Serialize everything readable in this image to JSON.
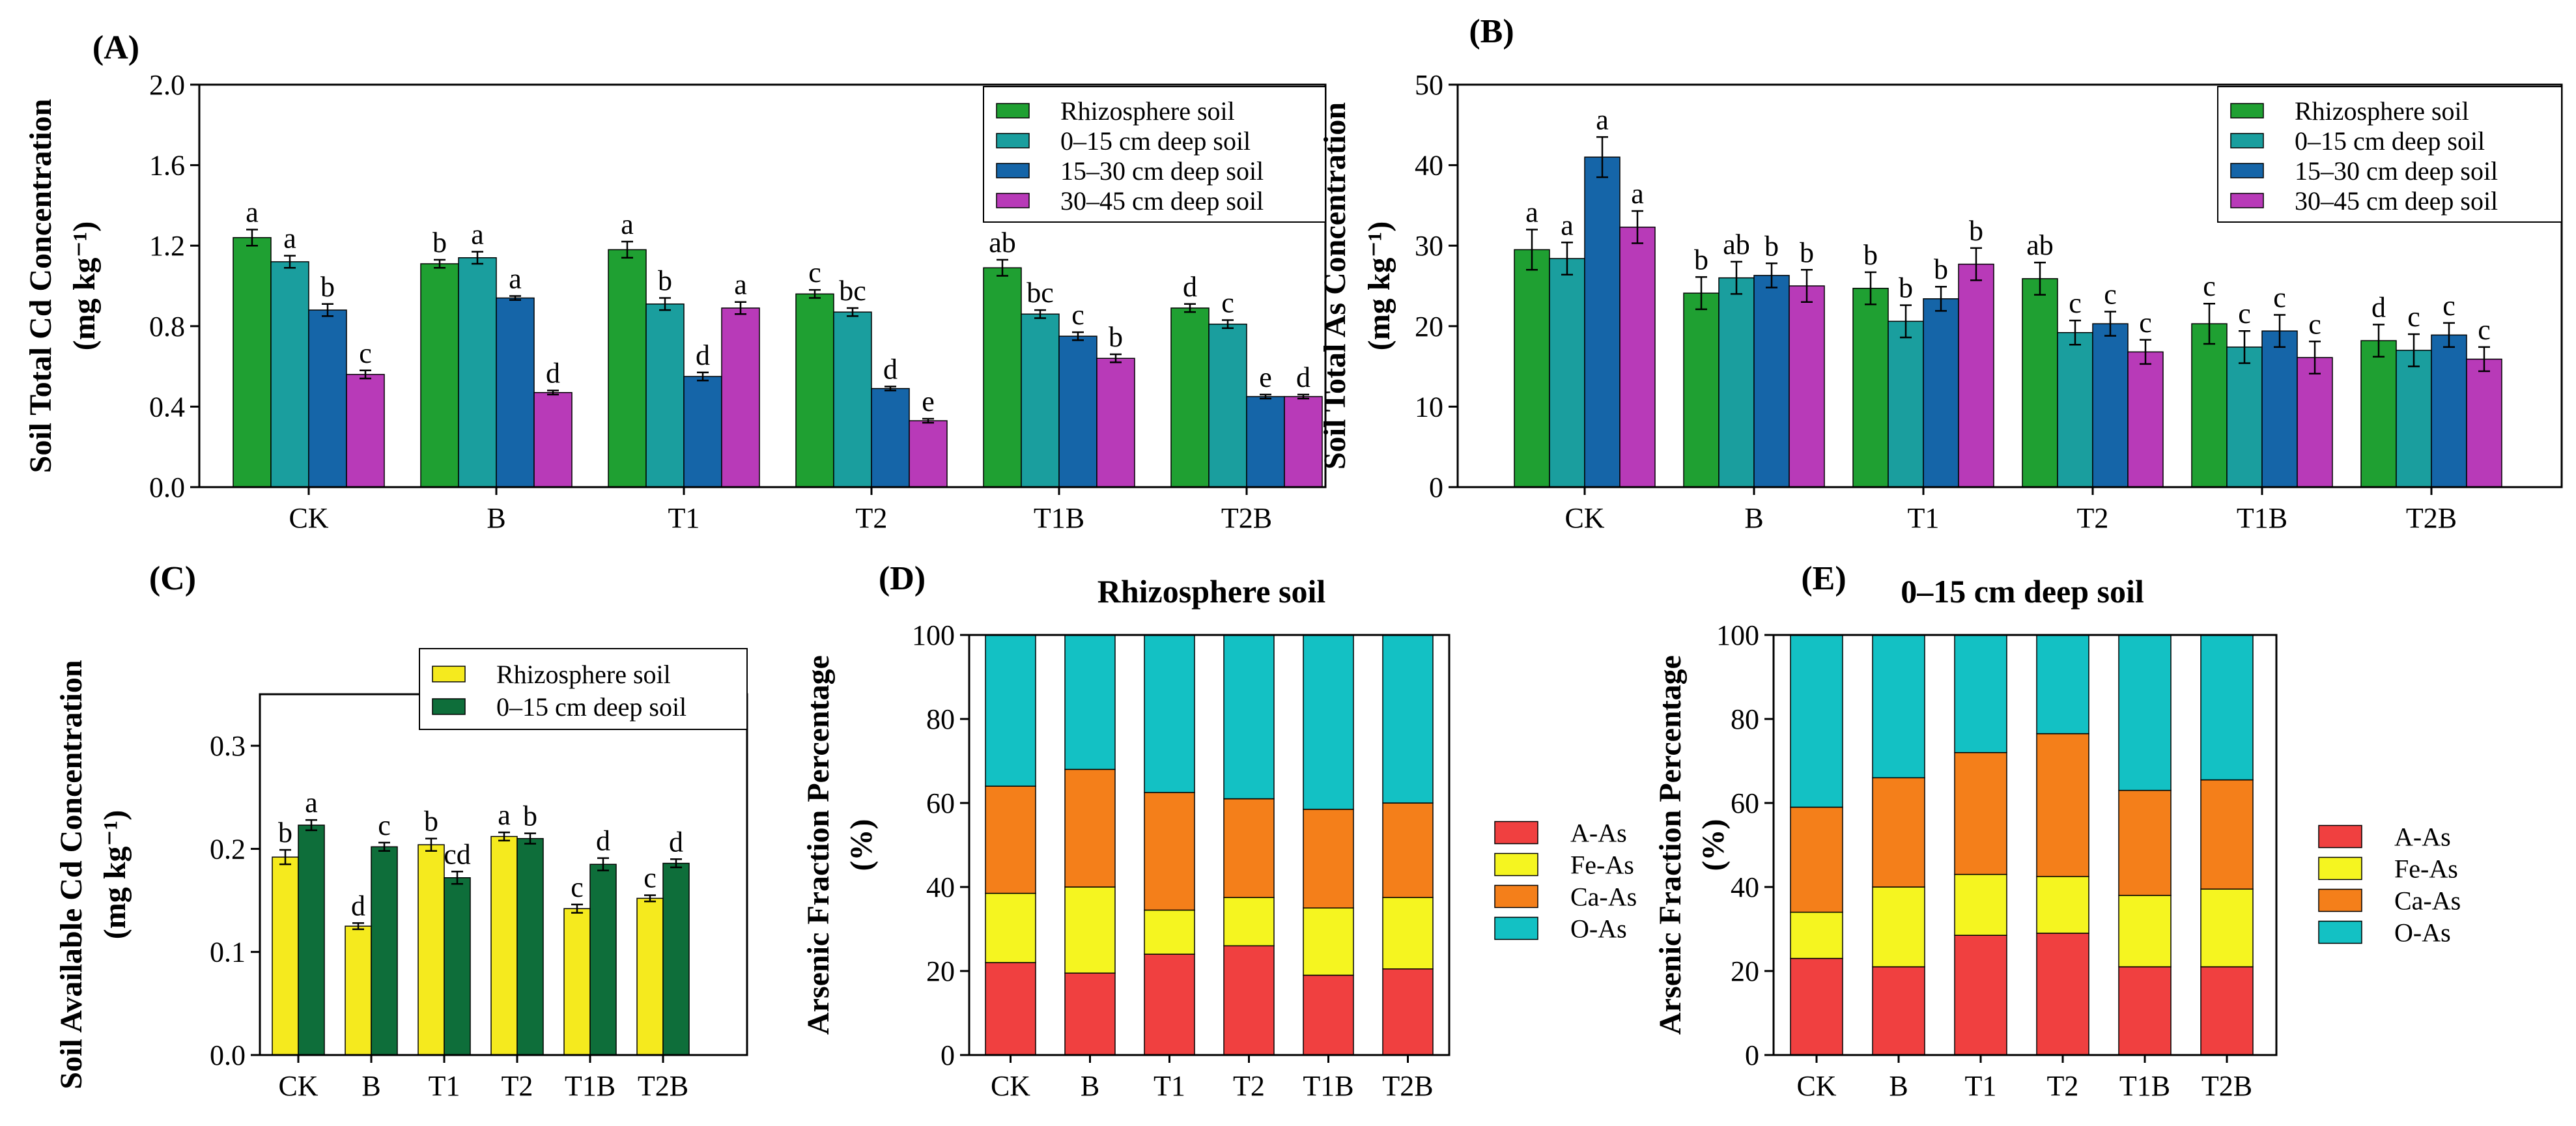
{
  "colors": {
    "rhizosphere": "#1fa032",
    "d0_15": "#1a9e9e",
    "d15_30": "#1565a8",
    "d30_45": "#b83ab8",
    "avail_rhizo": "#f5ea1e",
    "avail_0_15": "#0e6e3a",
    "A-As": "#f04040",
    "Fe-As": "#f5f520",
    "Ca-As": "#f47f1a",
    "O-As": "#13c1c4"
  },
  "chart_data": [
    {
      "panel": "(A)",
      "type": "bar",
      "title": "",
      "xlabel": "",
      "ylabel": "Soil Total Cd Concentration",
      "yunit": "(mg kg⁻¹)",
      "ylim": [
        0,
        2.0
      ],
      "yticks": [
        "0.0",
        "0.4",
        "0.8",
        "1.2",
        "1.6",
        "2.0"
      ],
      "categories": [
        "CK",
        "B",
        "T1",
        "T2",
        "T1B",
        "T2B"
      ],
      "legend_position": "top-right",
      "series": [
        {
          "name": "Rhizosphere soil",
          "color_key": "rhizosphere",
          "values": [
            1.24,
            1.11,
            1.18,
            0.96,
            1.09,
            0.89
          ],
          "errors": [
            0.04,
            0.02,
            0.04,
            0.02,
            0.04,
            0.02
          ],
          "labels": [
            "a",
            "b",
            "a",
            "c",
            "ab",
            "d"
          ]
        },
        {
          "name": "0–15 cm deep soil",
          "color_key": "d0_15",
          "values": [
            1.12,
            1.14,
            0.91,
            0.87,
            0.86,
            0.81
          ],
          "errors": [
            0.03,
            0.03,
            0.03,
            0.02,
            0.02,
            0.02
          ],
          "labels": [
            "a",
            "a",
            "b",
            "bc",
            "bc",
            "c"
          ]
        },
        {
          "name": "15–30 cm deep soil",
          "color_key": "d15_30",
          "values": [
            0.88,
            0.94,
            0.55,
            0.49,
            0.75,
            0.45
          ],
          "errors": [
            0.03,
            0.01,
            0.02,
            0.01,
            0.02,
            0.01
          ],
          "labels": [
            "b",
            "a",
            "d",
            "d",
            "c",
            "e"
          ]
        },
        {
          "name": "30–45 cm deep soil",
          "color_key": "d30_45",
          "values": [
            0.56,
            0.47,
            0.89,
            0.33,
            0.64,
            0.45
          ],
          "errors": [
            0.02,
            0.01,
            0.03,
            0.01,
            0.02,
            0.01
          ],
          "labels": [
            "c",
            "d",
            "a",
            "e",
            "b",
            "d"
          ]
        }
      ]
    },
    {
      "panel": "(B)",
      "type": "bar",
      "title": "",
      "xlabel": "",
      "ylabel": "Soil Total As Concentration",
      "yunit": "(mg kg⁻¹)",
      "ylim": [
        0,
        50
      ],
      "yticks": [
        "0",
        "10",
        "20",
        "30",
        "40",
        "50"
      ],
      "categories": [
        "CK",
        "B",
        "T1",
        "T2",
        "T1B",
        "T2B"
      ],
      "legend_position": "top-right",
      "series": [
        {
          "name": "Rhizosphere soil",
          "color_key": "rhizosphere",
          "values": [
            29.5,
            24.1,
            24.7,
            25.9,
            20.3,
            18.2
          ],
          "errors": [
            2.5,
            2.0,
            2.0,
            2.0,
            2.5,
            2.0
          ],
          "labels": [
            "a",
            "b",
            "b",
            "ab",
            "c",
            "d"
          ]
        },
        {
          "name": "0–15 cm deep soil",
          "color_key": "d0_15",
          "values": [
            28.4,
            26.0,
            20.6,
            19.2,
            17.4,
            17.0
          ],
          "errors": [
            2.0,
            2.0,
            2.0,
            1.5,
            2.0,
            2.0
          ],
          "labels": [
            "a",
            "ab",
            "b",
            "c",
            "c",
            "c"
          ]
        },
        {
          "name": "15–30 cm deep soil",
          "color_key": "d15_30",
          "values": [
            41.0,
            26.3,
            23.4,
            20.3,
            19.4,
            18.9
          ],
          "errors": [
            2.5,
            1.5,
            1.5,
            1.5,
            2.0,
            1.5
          ],
          "labels": [
            "a",
            "b",
            "b",
            "c",
            "c",
            "c"
          ]
        },
        {
          "name": "30–45 cm deep soil",
          "color_key": "d30_45",
          "values": [
            32.3,
            25.0,
            27.7,
            16.8,
            16.1,
            15.9
          ],
          "errors": [
            2.0,
            2.0,
            2.0,
            1.5,
            2.0,
            1.5
          ],
          "labels": [
            "a",
            "b",
            "b",
            "c",
            "c",
            "c"
          ]
        }
      ]
    },
    {
      "panel": "(C)",
      "type": "bar",
      "title": "",
      "xlabel": "",
      "ylabel": "Soil Available Cd Concentration",
      "yunit": "(mg kg⁻¹)",
      "ylim": [
        0,
        0.35
      ],
      "yticks": [
        "0.0",
        "0.1",
        "0.2",
        "0.3"
      ],
      "ytick_values": [
        0.0,
        0.1,
        0.2,
        0.3
      ],
      "categories": [
        "CK",
        "B",
        "T1",
        "T2",
        "T1B",
        "T2B"
      ],
      "legend_position": "top-right",
      "series": [
        {
          "name": "Rhizosphere soil",
          "color_key": "avail_rhizo",
          "values": [
            0.192,
            0.125,
            0.204,
            0.212,
            0.142,
            0.152
          ],
          "errors": [
            0.007,
            0.003,
            0.006,
            0.004,
            0.004,
            0.003
          ],
          "labels": [
            "b",
            "d",
            "b",
            "a",
            "c",
            "c"
          ]
        },
        {
          "name": "0–15 cm deep soil",
          "color_key": "avail_0_15",
          "values": [
            0.223,
            0.202,
            0.172,
            0.21,
            0.185,
            0.186
          ],
          "errors": [
            0.005,
            0.004,
            0.006,
            0.005,
            0.006,
            0.004
          ],
          "labels": [
            "a",
            "c",
            "cd",
            "b",
            "d",
            "d"
          ]
        }
      ]
    },
    {
      "panel": "(D)",
      "type": "bar",
      "stacked": true,
      "title": "Rhizosphere soil",
      "xlabel": "",
      "ylabel": "Arsenic Fraction Percentage",
      "yunit": "(%)",
      "ylim": [
        0,
        100
      ],
      "yticks": [
        "0",
        "20",
        "40",
        "60",
        "80",
        "100"
      ],
      "categories": [
        "CK",
        "B",
        "T1",
        "T2",
        "T1B",
        "T2B"
      ],
      "legend_position": "right",
      "series": [
        {
          "name": "A-As",
          "color_key": "A-As",
          "values": [
            22.0,
            19.5,
            24.0,
            26.0,
            19.0,
            20.5
          ]
        },
        {
          "name": "Fe-As",
          "color_key": "Fe-As",
          "values": [
            16.5,
            20.5,
            10.5,
            11.5,
            16.0,
            17.0
          ]
        },
        {
          "name": "Ca-As",
          "color_key": "Ca-As",
          "values": [
            25.5,
            28.0,
            28.0,
            23.5,
            23.5,
            22.5
          ]
        },
        {
          "name": "O-As",
          "color_key": "O-As",
          "values": [
            36.0,
            32.0,
            37.5,
            39.0,
            41.5,
            40.0
          ]
        }
      ]
    },
    {
      "panel": "(E)",
      "type": "bar",
      "stacked": true,
      "title": "0–15 cm deep soil",
      "xlabel": "",
      "ylabel": "Arsenic Fraction Percentage",
      "yunit": "(%)",
      "ylim": [
        0,
        100
      ],
      "yticks": [
        "0",
        "20",
        "40",
        "60",
        "80",
        "100"
      ],
      "categories": [
        "CK",
        "B",
        "T1",
        "T2",
        "T1B",
        "T2B"
      ],
      "legend_position": "right",
      "series": [
        {
          "name": "A-As",
          "color_key": "A-As",
          "values": [
            23.0,
            21.0,
            28.5,
            29.0,
            21.0,
            21.0
          ]
        },
        {
          "name": "Fe-As",
          "color_key": "Fe-As",
          "values": [
            11.0,
            19.0,
            14.5,
            13.5,
            17.0,
            18.5
          ]
        },
        {
          "name": "Ca-As",
          "color_key": "Ca-As",
          "values": [
            25.0,
            26.0,
            29.0,
            34.0,
            25.0,
            26.0
          ]
        },
        {
          "name": "O-As",
          "color_key": "O-As",
          "values": [
            41.0,
            34.0,
            28.0,
            23.5,
            37.0,
            34.5
          ]
        }
      ]
    }
  ]
}
